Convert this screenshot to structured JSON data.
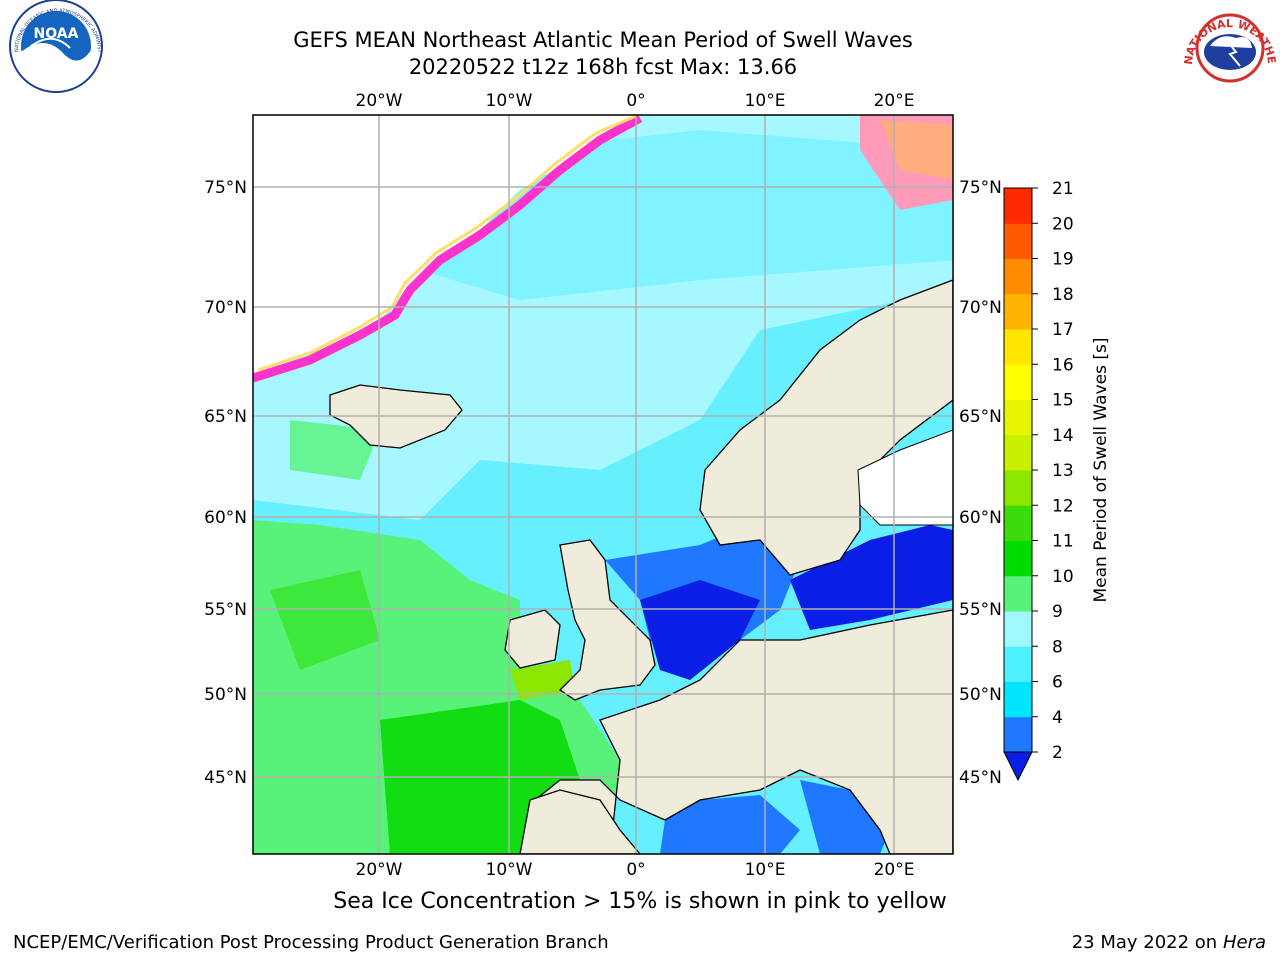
{
  "header": {
    "title_line1": "GEFS MEAN Northeast Atlantic Mean Period of Swell Waves",
    "title_line2": "20220522 t12z 168h fcst   Max: 13.66"
  },
  "map": {
    "lon_labels": [
      "20°W",
      "10°W",
      "0°",
      "10°E",
      "20°E"
    ],
    "lat_labels": [
      "75°N",
      "70°N",
      "65°N",
      "60°N",
      "55°N",
      "50°N",
      "45°N"
    ]
  },
  "colorbar": {
    "label": "Mean Period of Swell Waves [s]",
    "ticks": [
      "2",
      "4",
      "6",
      "8",
      "9",
      "10",
      "11",
      "12",
      "13",
      "14",
      "15",
      "16",
      "17",
      "18",
      "19",
      "20",
      "21"
    ],
    "colors": [
      "#1f78ff",
      "#00e5ff",
      "#4df0ff",
      "#9ff7ff",
      "#58f27a",
      "#00dc00",
      "#3cdc0a",
      "#8ce600",
      "#c8f000",
      "#e6f500",
      "#ffff00",
      "#ffe600",
      "#ffb400",
      "#ff8c00",
      "#ff5a00",
      "#ff2a00"
    ],
    "extend_color": "#0b1ee6"
  },
  "note": "Sea Ice Concentration > 15% is shown in pink to yellow",
  "footer": {
    "left": "NCEP/EMC/Verification Post Processing Product Generation Branch",
    "right_date": "23 May 2022 on",
    "right_host": "Hera"
  },
  "logos": {
    "noaa": "NOAA",
    "noaa_ring": "NATIONAL OCEANIC AND ATMOSPHERIC ADMINISTRATION · U.S. DEPARTMENT OF COMMERCE",
    "nws_ring": "NATIONAL WEATHER SERVICE"
  }
}
